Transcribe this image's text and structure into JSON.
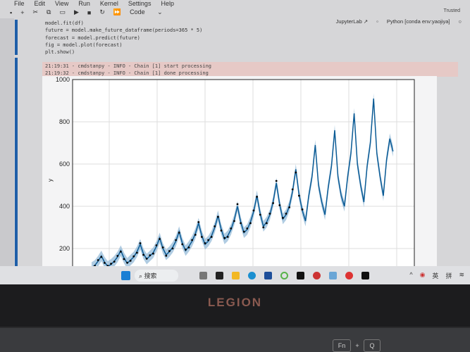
{
  "menu": [
    "File",
    "Edit",
    "View",
    "Run",
    "Kernel",
    "Settings",
    "Help"
  ],
  "trusted": "Trusted",
  "toolbar": {
    "cell_type": "Code"
  },
  "kernel": {
    "jupyterlab": "JupyterLab ↗",
    "kernel_name": "Python [conda env:yaojiya]"
  },
  "code": [
    "model.fit(df)",
    "future = model.make_future_dataframe(periods=365 * 5)",
    "forecast = model.predict(future)",
    "fig = model.plot(forecast)",
    "plt.show()"
  ],
  "stderr": [
    "21:19:31 - cmdstanpy - INFO - Chain [1] start processing",
    "21:19:32 - cmdstanpy - INFO - Chain [1] done processing"
  ],
  "taskbar": {
    "search": "搜索",
    "tray": [
      "^",
      "英",
      "拼"
    ]
  },
  "laptop": {
    "brand": "LEGION",
    "keys": [
      "Fn",
      "+",
      "Q"
    ]
  },
  "colors": {
    "forecast": "#0b5b95",
    "interval": "#8fb6d6",
    "observed": "#000000"
  },
  "chart_data": {
    "type": "line",
    "xlabel": "",
    "ylabel": "y",
    "yticks": [
      200,
      400,
      600,
      800,
      1000
    ],
    "ylim": [
      100,
      1000
    ],
    "grid": true,
    "forecast": [
      110,
      120,
      140,
      165,
      135,
      115,
      125,
      140,
      160,
      190,
      155,
      130,
      145,
      160,
      185,
      220,
      175,
      150,
      165,
      180,
      210,
      250,
      200,
      170,
      185,
      205,
      235,
      280,
      225,
      190,
      210,
      235,
      270,
      320,
      260,
      220,
      235,
      260,
      300,
      355,
      290,
      245,
      260,
      290,
      335,
      400,
      325,
      275,
      290,
      325,
      375,
      450,
      365,
      305,
      325,
      360,
      420,
      510,
      410,
      340,
      360,
      400,
      470,
      575,
      455,
      380,
      330,
      450,
      540,
      690,
      500,
      420,
      360,
      490,
      590,
      760,
      540,
      450,
      400,
      540,
      650,
      840,
      600,
      500,
      420,
      590,
      700,
      910,
      650,
      540,
      450,
      620,
      720,
      660
    ],
    "observed": [
      112,
      118,
      145,
      160,
      132,
      118,
      128,
      138,
      165,
      185,
      150,
      133,
      142,
      163,
      180,
      225,
      170,
      152,
      168,
      176,
      215,
      245,
      205,
      166,
      188,
      200,
      240,
      275,
      220,
      195,
      205,
      240,
      265,
      325,
      255,
      225,
      240,
      255,
      305,
      350,
      285,
      250,
      255,
      295,
      330,
      410,
      320,
      280,
      295,
      320,
      380,
      445,
      360,
      300,
      320,
      365,
      415,
      520,
      405,
      345,
      365,
      395,
      480,
      560,
      450,
      385
    ]
  }
}
